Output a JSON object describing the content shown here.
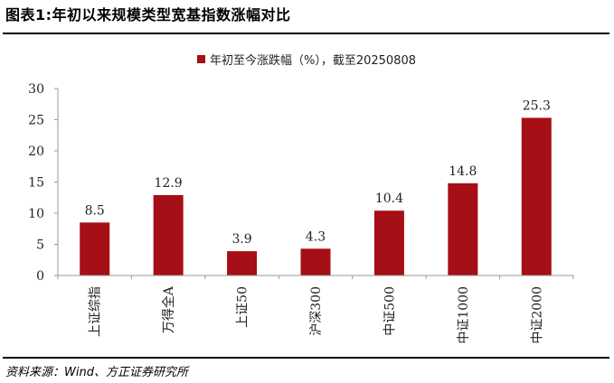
{
  "figure": {
    "title": "图表1:年初以来规模类型宽基指数涨幅对比",
    "source": "资料来源：Wind、方正证券研究所"
  },
  "chart_data": {
    "type": "bar",
    "categories": [
      "上证综指",
      "万得全A",
      "上证50",
      "沪深300",
      "中证500",
      "中证1000",
      "中证2000"
    ],
    "series": [
      {
        "name": "年初至今涨跌幅（%），截至20250808",
        "values": [
          8.5,
          12.9,
          3.9,
          4.3,
          10.4,
          14.8,
          25.3
        ],
        "color": "#a50f15"
      }
    ],
    "data_labels": [
      "8.5",
      "12.9",
      "3.9",
      "4.3",
      "10.4",
      "14.8",
      "25.3"
    ],
    "ylim": [
      0,
      30
    ],
    "yticks": [
      0,
      5,
      10,
      15,
      20,
      25,
      30
    ],
    "grid": false,
    "legend_position": "top-center",
    "axis_color": "#999999"
  }
}
